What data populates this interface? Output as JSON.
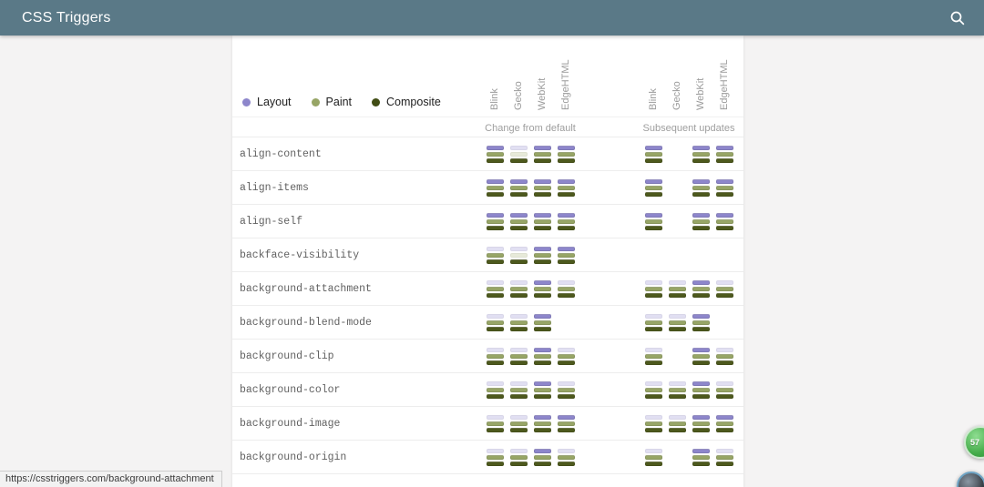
{
  "header": {
    "title": "CSS Triggers"
  },
  "legend": {
    "items": [
      {
        "label": "Layout",
        "color": "#8d86cb"
      },
      {
        "label": "Paint",
        "color": "#97a566"
      },
      {
        "label": "Composite",
        "color": "#414d15"
      }
    ]
  },
  "table": {
    "group_headers": [
      {
        "label": "Change from default"
      },
      {
        "label": "Subsequent updates"
      }
    ],
    "browsers": [
      "Blink",
      "Gecko",
      "WebKit",
      "EdgeHTML"
    ],
    "bar_colors": {
      "layout_on": "#8d86cb",
      "layout_off": "#e1dff2",
      "paint_on": "#97a566",
      "paint_off": "#e7ead9",
      "composite_on": "#4d591d",
      "composite_off": "#d9dcc8"
    },
    "rows": [
      {
        "property": "align-content",
        "change": [
          [
            "on",
            "on",
            "on"
          ],
          [
            "off",
            "off",
            "on"
          ],
          [
            "on",
            "on",
            "on"
          ],
          [
            "on",
            "on",
            "on"
          ]
        ],
        "subsequent": [
          [
            "on",
            "on",
            "on"
          ],
          null,
          [
            "on",
            "on",
            "on"
          ],
          [
            "on",
            "on",
            "on"
          ]
        ]
      },
      {
        "property": "align-items",
        "change": [
          [
            "on",
            "on",
            "on"
          ],
          [
            "on",
            "on",
            "on"
          ],
          [
            "on",
            "on",
            "on"
          ],
          [
            "on",
            "on",
            "on"
          ]
        ],
        "subsequent": [
          [
            "on",
            "on",
            "on"
          ],
          null,
          [
            "on",
            "on",
            "on"
          ],
          [
            "on",
            "on",
            "on"
          ]
        ]
      },
      {
        "property": "align-self",
        "change": [
          [
            "on",
            "on",
            "on"
          ],
          [
            "on",
            "on",
            "on"
          ],
          [
            "on",
            "on",
            "on"
          ],
          [
            "on",
            "on",
            "on"
          ]
        ],
        "subsequent": [
          [
            "on",
            "on",
            "on"
          ],
          null,
          [
            "on",
            "on",
            "on"
          ],
          [
            "on",
            "on",
            "on"
          ]
        ]
      },
      {
        "property": "backface-visibility",
        "change": [
          [
            "off",
            "on",
            "on"
          ],
          [
            "off",
            "off",
            "on"
          ],
          [
            "on",
            "on",
            "on"
          ],
          [
            "on",
            "on",
            "on"
          ]
        ],
        "subsequent": [
          null,
          null,
          null,
          null
        ]
      },
      {
        "property": "background-attachment",
        "change": [
          [
            "off",
            "on",
            "on"
          ],
          [
            "off",
            "on",
            "on"
          ],
          [
            "on",
            "on",
            "on"
          ],
          [
            "off",
            "on",
            "on"
          ]
        ],
        "subsequent": [
          [
            "off",
            "on",
            "on"
          ],
          [
            "off",
            "on",
            "on"
          ],
          [
            "on",
            "on",
            "on"
          ],
          [
            "off",
            "on",
            "on"
          ]
        ]
      },
      {
        "property": "background-blend-mode",
        "change": [
          [
            "off",
            "on",
            "on"
          ],
          [
            "off",
            "on",
            "on"
          ],
          [
            "on",
            "on",
            "on"
          ],
          null
        ],
        "subsequent": [
          [
            "off",
            "on",
            "on"
          ],
          [
            "off",
            "on",
            "on"
          ],
          [
            "on",
            "on",
            "on"
          ],
          null
        ]
      },
      {
        "property": "background-clip",
        "change": [
          [
            "off",
            "on",
            "on"
          ],
          [
            "off",
            "on",
            "on"
          ],
          [
            "on",
            "on",
            "on"
          ],
          [
            "off",
            "on",
            "on"
          ]
        ],
        "subsequent": [
          [
            "off",
            "on",
            "on"
          ],
          null,
          [
            "on",
            "on",
            "on"
          ],
          [
            "off",
            "on",
            "on"
          ]
        ]
      },
      {
        "property": "background-color",
        "change": [
          [
            "off",
            "on",
            "on"
          ],
          [
            "off",
            "on",
            "on"
          ],
          [
            "on",
            "on",
            "on"
          ],
          [
            "off",
            "on",
            "on"
          ]
        ],
        "subsequent": [
          [
            "off",
            "on",
            "on"
          ],
          [
            "off",
            "on",
            "on"
          ],
          [
            "on",
            "on",
            "on"
          ],
          [
            "off",
            "on",
            "on"
          ]
        ]
      },
      {
        "property": "background-image",
        "change": [
          [
            "off",
            "on",
            "on"
          ],
          [
            "off",
            "on",
            "on"
          ],
          [
            "on",
            "on",
            "on"
          ],
          [
            "on",
            "on",
            "on"
          ]
        ],
        "subsequent": [
          [
            "off",
            "on",
            "on"
          ],
          [
            "off",
            "on",
            "on"
          ],
          [
            "on",
            "on",
            "on"
          ],
          [
            "on",
            "on",
            "on"
          ]
        ]
      },
      {
        "property": "background-origin",
        "change": [
          [
            "off",
            "on",
            "on"
          ],
          [
            "off",
            "on",
            "on"
          ],
          [
            "on",
            "on",
            "on"
          ],
          [
            "off",
            "on",
            "on"
          ]
        ],
        "subsequent": [
          [
            "off",
            "on",
            "on"
          ],
          null,
          [
            "on",
            "on",
            "on"
          ],
          [
            "off",
            "on",
            "on"
          ]
        ]
      }
    ]
  },
  "status_bar": {
    "url": "https://csstriggers.com/background-attachment"
  },
  "overlay": {
    "badge_count": "57"
  }
}
